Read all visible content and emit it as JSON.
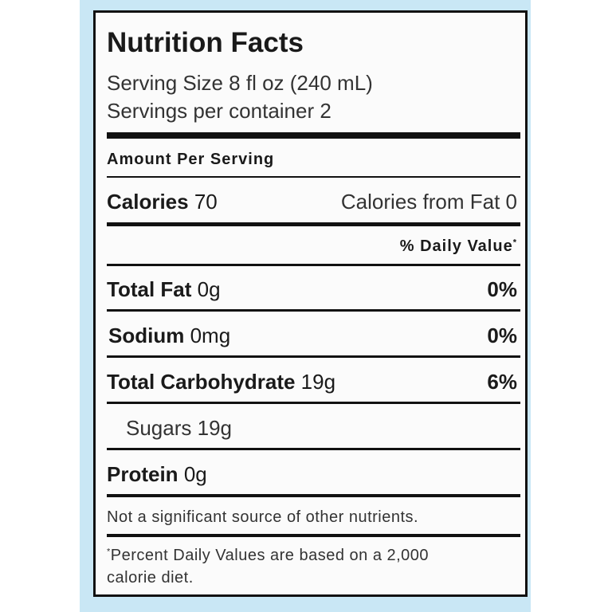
{
  "title": "Nutrition Facts",
  "serving_size": "Serving Size 8 fl oz (240 mL)",
  "servings_per_container": "Servings per container 2",
  "amount_per_serving": "Amount Per Serving",
  "calories": {
    "label": "Calories",
    "value": "70",
    "from_fat_label": "Calories from Fat",
    "from_fat_value": "0"
  },
  "daily_value_header": "% Daily Value",
  "daily_value_mark": "*",
  "nutrients": [
    {
      "label": "Total Fat",
      "amount": "0g",
      "dv": "0%"
    },
    {
      "label": "Sodium",
      "amount": "0mg",
      "dv": "0%"
    },
    {
      "label": "Total Carbohydrate",
      "amount": "19g",
      "dv": "6%"
    },
    {
      "label": "Sugars",
      "amount": "19g",
      "dv": ""
    },
    {
      "label": "Protein",
      "amount": "0g",
      "dv": ""
    }
  ],
  "note": "Not a significant source of other nutrients.",
  "footnote_mark": "*",
  "footnote_line1": "Percent Daily Values are based on a 2,000",
  "footnote_line2": "calorie diet.",
  "colors": {
    "background": "#c9e7f5",
    "ink": "#111111"
  }
}
